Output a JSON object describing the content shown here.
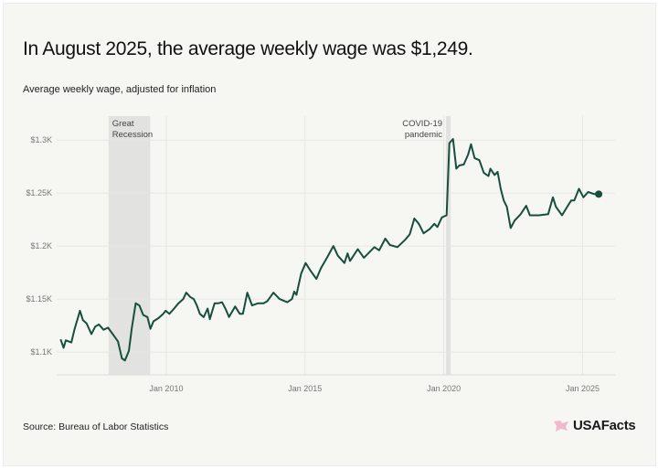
{
  "title": "In August 2025, the average weekly wage was $1,249.",
  "subtitle": "Average weekly wage, adjusted for inflation",
  "source": "Source: Bureau of Labor Statistics",
  "logo_text": "USAFacts",
  "colors": {
    "line": "#164f3d",
    "band": "#e2e2e0",
    "grid": "#e6e6e2",
    "background": "#f6f6f2",
    "logo_flag": "#f2b8cc"
  },
  "chart_data": {
    "type": "line",
    "title": "In August 2025, the average weekly wage was $1,249.",
    "ylabel": "Average weekly wage, adjusted for inflation",
    "xlabel": "",
    "xlim": [
      2006.05,
      2026.17
    ],
    "ylim": [
      1078.5,
      1320
    ],
    "grid": "on",
    "y_ticks": [
      {
        "value": 1100,
        "label": "$1.1K"
      },
      {
        "value": 1150,
        "label": "$1.15K"
      },
      {
        "value": 1200,
        "label": "$1.2K"
      },
      {
        "value": 1250,
        "label": "$1.25K"
      },
      {
        "value": 1300,
        "label": "$1.3K"
      }
    ],
    "x_ticks": [
      {
        "value": 2010,
        "label": "Jan 2010"
      },
      {
        "value": 2015,
        "label": "Jan 2015"
      },
      {
        "value": 2020,
        "label": "Jan 2020"
      },
      {
        "value": 2025,
        "label": "Jan 2025"
      }
    ],
    "annotations": [
      {
        "label": [
          "Great",
          "Recession"
        ],
        "start": 2007.92,
        "end": 2009.42
      },
      {
        "label": [
          "COVID-19",
          "pandemic"
        ],
        "start": 2020.08,
        "end": 2020.25
      }
    ],
    "last_point": {
      "x": 2025.58,
      "y": 1249,
      "label": "August 2025"
    },
    "x": [
      2006.19,
      2006.3,
      2006.38,
      2006.58,
      2006.69,
      2006.89,
      2007.0,
      2007.13,
      2007.3,
      2007.44,
      2007.57,
      2007.74,
      2007.9,
      2008.07,
      2008.26,
      2008.4,
      2008.51,
      2008.65,
      2008.76,
      2008.9,
      2009.03,
      2009.17,
      2009.32,
      2009.43,
      2009.54,
      2009.72,
      2009.89,
      2009.98,
      2010.11,
      2010.28,
      2010.44,
      2010.61,
      2010.72,
      2010.86,
      2010.99,
      2011.1,
      2011.21,
      2011.35,
      2011.49,
      2011.57,
      2011.74,
      2011.88,
      2012.01,
      2012.15,
      2012.26,
      2012.48,
      2012.65,
      2012.76,
      2012.92,
      2013.09,
      2013.31,
      2013.51,
      2013.64,
      2013.86,
      2014.08,
      2014.36,
      2014.53,
      2014.61,
      2014.69,
      2014.86,
      2015.02,
      2015.19,
      2015.41,
      2015.57,
      2015.79,
      2016.02,
      2016.18,
      2016.42,
      2016.53,
      2016.62,
      2016.9,
      2017.12,
      2017.5,
      2017.67,
      2017.89,
      2018.06,
      2018.33,
      2018.61,
      2018.77,
      2018.94,
      2019.1,
      2019.27,
      2019.49,
      2019.66,
      2019.77,
      2019.93,
      2020.1,
      2020.2,
      2020.33,
      2020.45,
      2020.56,
      2020.72,
      2020.87,
      2020.98,
      2021.11,
      2021.28,
      2021.44,
      2021.61,
      2021.68,
      2021.83,
      2021.94,
      2022.05,
      2022.16,
      2022.27,
      2022.41,
      2022.55,
      2022.77,
      2022.97,
      2023.1,
      2023.43,
      2023.76,
      2023.93,
      2024.04,
      2024.26,
      2024.42,
      2024.59,
      2024.7,
      2024.87,
      2025.03,
      2025.2,
      2025.42,
      2025.58
    ],
    "series": [
      {
        "values": [
          1112,
          1104,
          1111,
          1109,
          1121,
          1139,
          1130,
          1127,
          1117,
          1124,
          1126,
          1121,
          1123,
          1117,
          1110,
          1094,
          1092,
          1101,
          1123,
          1146,
          1144,
          1135,
          1133,
          1122,
          1129,
          1132,
          1136,
          1139,
          1136,
          1141,
          1146,
          1150,
          1156,
          1152,
          1150,
          1144,
          1136,
          1133,
          1141,
          1131,
          1146,
          1146,
          1147,
          1140,
          1133,
          1143,
          1136,
          1136,
          1156,
          1144,
          1146,
          1146,
          1148,
          1156,
          1150,
          1147,
          1150,
          1157,
          1154,
          1174,
          1184,
          1177,
          1169,
          1179,
          1189,
          1200,
          1191,
          1184,
          1193,
          1186,
          1197,
          1189,
          1199,
          1196,
          1207,
          1201,
          1199,
          1206,
          1211,
          1226,
          1221,
          1212,
          1216,
          1221,
          1218,
          1227,
          1229,
          1297,
          1301,
          1273,
          1276,
          1277,
          1286,
          1296,
          1283,
          1281,
          1269,
          1266,
          1273,
          1267,
          1270,
          1254,
          1243,
          1237,
          1217,
          1224,
          1230,
          1238,
          1229,
          1229,
          1230,
          1246,
          1237,
          1229,
          1236,
          1243,
          1243,
          1254,
          1246,
          1251,
          1249,
          1249
        ]
      }
    ]
  }
}
